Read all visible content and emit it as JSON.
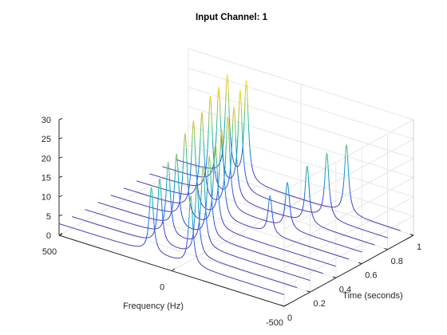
{
  "chart_data": {
    "type": "waterfall",
    "title": "Input Channel: 1",
    "xlabel": "Frequency (Hz)",
    "ylabel": "Time (seconds)",
    "zlabel": "",
    "x_ticks": [
      "500",
      "0",
      "-500"
    ],
    "y_ticks": [
      "0",
      "0.2",
      "0.4",
      "0.6",
      "0.8",
      "1"
    ],
    "z_ticks": [
      "0",
      "5",
      "10",
      "15",
      "20",
      "25",
      "30"
    ],
    "xlim": [
      -500,
      500
    ],
    "ylim": [
      0,
      1
    ],
    "zlim": [
      0,
      30
    ],
    "grid": true,
    "colormap": "parula",
    "baseline": 3,
    "times": [
      0,
      0.1,
      0.2,
      0.3,
      0.4,
      0.5,
      0.6,
      0.7,
      0.8,
      0.9
    ],
    "series": [
      {
        "peaks": [
          {
            "freq": 90,
            "amp": 20
          },
          {
            "freq": -85,
            "amp": 21
          }
        ]
      },
      {
        "peaks": [
          {
            "freq": 110,
            "amp": 20
          },
          {
            "freq": -55,
            "amp": 21
          }
        ]
      },
      {
        "peaks": [
          {
            "freq": 130,
            "amp": 22
          },
          {
            "freq": -25,
            "amp": 24
          }
        ]
      },
      {
        "peaks": [
          {
            "freq": 150,
            "amp": 22
          },
          {
            "freq": 5,
            "amp": 24
          }
        ]
      },
      {
        "peaks": [
          {
            "freq": 170,
            "amp": 25
          },
          {
            "freq": 35,
            "amp": 25
          }
        ]
      },
      {
        "peaks": [
          {
            "freq": 190,
            "amp": 26
          },
          {
            "freq": 65,
            "amp": 26
          },
          {
            "freq": -150,
            "amp": 13
          }
        ]
      },
      {
        "peaks": [
          {
            "freq": 210,
            "amp": 26
          },
          {
            "freq": 95,
            "amp": 27
          },
          {
            "freq": -170,
            "amp": 15
          }
        ]
      },
      {
        "peaks": [
          {
            "freq": 230,
            "amp": 28
          },
          {
            "freq": 125,
            "amp": 27
          },
          {
            "freq": -200,
            "amp": 18
          }
        ]
      },
      {
        "peaks": [
          {
            "freq": 250,
            "amp": 28
          },
          {
            "freq": 155,
            "amp": 29
          },
          {
            "freq": -230,
            "amp": 20
          }
        ]
      },
      {
        "peaks": [
          {
            "freq": 270,
            "amp": 29
          },
          {
            "freq": 185,
            "amp": 29
          },
          {
            "freq": -260,
            "amp": 21
          }
        ]
      }
    ]
  }
}
